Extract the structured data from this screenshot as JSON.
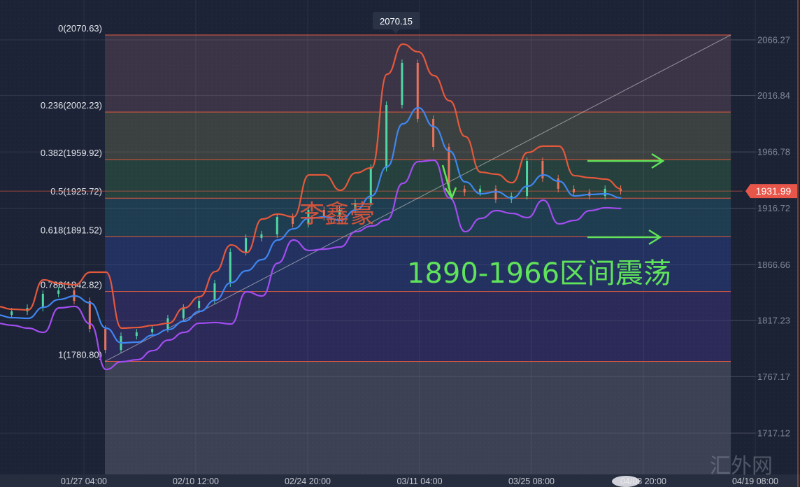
{
  "chart_data": {
    "type": "candlestick",
    "title": "",
    "x_ticks": [
      "01/27 04:00",
      "02/10 12:00",
      "02/24 20:00",
      "03/11 04:00",
      "03/25 08:00",
      "04/08 20:00",
      "04/19 08:00"
    ],
    "y_ticks": [
      2066.27,
      2016.84,
      1966.78,
      1916.72,
      1866.66,
      1817.23,
      1767.17,
      1717.12
    ],
    "ylim": [
      1669.3,
      2101.7
    ],
    "grid": true,
    "close": [
      1822.1,
      1825.2,
      1828.3,
      1840.8,
      1843.8,
      1834.5,
      1809.7,
      1791.0,
      1803.4,
      1806.6,
      1809.7,
      1819.0,
      1828.3,
      1834.5,
      1850.1,
      1878.0,
      1890.4,
      1893.6,
      1909.1,
      1902.9,
      1915.3,
      1909.1,
      1915.3,
      1921.5,
      1952.6,
      2008.5,
      2045.8,
      1996.1,
      1971.2,
      1934.0,
      1930.8,
      1934.0,
      1924.6,
      1927.7,
      1958.8,
      1943.3,
      1934.0,
      1930.8,
      1927.7,
      1934.0,
      1931.99
    ],
    "bollinger_upper": [
      1829.6,
      1827.1,
      1826.5,
      1853.2,
      1850.1,
      1848.8,
      1860.0,
      1860.0,
      1810.3,
      1810.9,
      1812.8,
      1814.7,
      1828.3,
      1838.3,
      1860.6,
      1884.2,
      1877.4,
      1907.2,
      1911.6,
      1909.1,
      1946.4,
      1946.4,
      1932.7,
      1948.2,
      1952.6,
      2035.8,
      2062.5,
      2055.7,
      2034.6,
      2012.2,
      1980.5,
      1948.8,
      1947.0,
      1939.5,
      1966.3,
      1971.9,
      1971.9,
      1945.7,
      1943.9,
      1942.6,
      1934.0
    ],
    "bollinger_middle": [
      1822.1,
      1819.6,
      1819.0,
      1828.9,
      1835.8,
      1838.9,
      1832.7,
      1810.3,
      1797.2,
      1797.9,
      1804.1,
      1809.1,
      1816.5,
      1825.2,
      1835.2,
      1850.7,
      1861.3,
      1871.2,
      1888.6,
      1898.5,
      1907.8,
      1909.1,
      1906.0,
      1915.3,
      1927.7,
      1953.8,
      1991.7,
      2006.0,
      1989.2,
      1967.5,
      1940.2,
      1929.6,
      1931.4,
      1925.9,
      1936.4,
      1946.4,
      1940.8,
      1927.7,
      1929.0,
      1929.6,
      1925.9
    ],
    "bollinger_lower": [
      1814.7,
      1812.8,
      1810.3,
      1806.6,
      1828.3,
      1829.6,
      1814.0,
      1773.6,
      1780.5,
      1782.3,
      1790.4,
      1799.7,
      1806.6,
      1814.7,
      1815.3,
      1814.0,
      1842.6,
      1838.9,
      1868.1,
      1888.6,
      1879.3,
      1880.5,
      1882.4,
      1896.0,
      1901.0,
      1906.6,
      1938.9,
      1958.2,
      1959.4,
      1925.9,
      1896.0,
      1907.8,
      1914.7,
      1912.2,
      1908.5,
      1924.0,
      1902.9,
      1906.0,
      1914.7,
      1917.2,
      1916.6
    ],
    "fibonacci": [
      {
        "ratio": 0,
        "price": 2070.63,
        "label": "0(2070.63)"
      },
      {
        "ratio": 0.236,
        "price": 2002.23,
        "label": "0.236(2002.23)"
      },
      {
        "ratio": 0.382,
        "price": 1959.92,
        "label": "0.382(1959.92)"
      },
      {
        "ratio": 0.5,
        "price": 1925.72,
        "label": "0.5(1925.72)"
      },
      {
        "ratio": 0.618,
        "price": 1891.52,
        "label": "0.618(1891.52)"
      },
      {
        "ratio": 0.786,
        "price": 1842.82,
        "label": "0.786(1842.82)"
      },
      {
        "ratio": 1,
        "price": 1780.8,
        "label": "1(1780.80)"
      }
    ],
    "peak_label": "2070.15",
    "last_price": 1931.99,
    "last_price_label": "1931.99"
  },
  "annotations": {
    "range_text": "1890-1966区间震荡",
    "signature": "李鑫豪",
    "watermark": "汇外网"
  },
  "colors": {
    "upper_band": "#e4583c",
    "middle_band": "#3f86f0",
    "lower_band": "#a24df0",
    "fib_line": "#e0583e",
    "candle_up": "#4fd6a4",
    "candle_down": "#e8735e",
    "annotation_green": "#5fe35a",
    "price_tag": "#e8564a",
    "fib_fills": [
      "#3b3447",
      "#3b4140",
      "#26413d",
      "#1f3d50",
      "#233160",
      "#2c2a58",
      "#3c4254"
    ]
  }
}
